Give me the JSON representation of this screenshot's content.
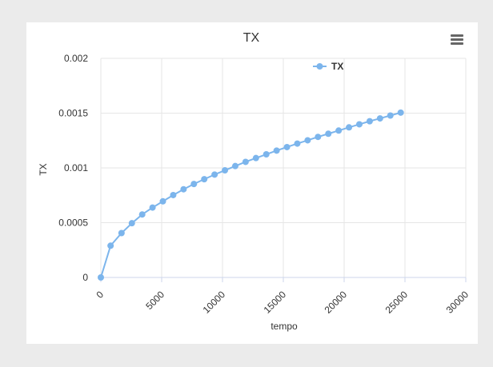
{
  "chart_data": {
    "type": "line",
    "title": "TX",
    "xlabel": "tempo",
    "ylabel": "TX",
    "xlim": [
      0,
      30000
    ],
    "ylim": [
      0,
      0.002
    ],
    "x_ticks": [
      "0",
      "5000",
      "10000",
      "15000",
      "20000",
      "25000",
      "30000"
    ],
    "y_ticks": [
      "0",
      "0.0005",
      "0.001",
      "0.0015",
      "0.002"
    ],
    "grid": true,
    "legend_position": "top",
    "color": "#7cb5ec",
    "series": [
      {
        "name": "TX",
        "x": [
          0,
          800,
          1700,
          2550,
          3400,
          4250,
          5100,
          5950,
          6800,
          7650,
          8500,
          9350,
          10200,
          11050,
          11900,
          12750,
          13600,
          14450,
          15300,
          16150,
          17000,
          17850,
          18700,
          19550,
          20400,
          21250,
          22100,
          22950,
          23800,
          24650
        ],
        "y": [
          0,
          0.00029,
          0.000405,
          0.000495,
          0.000575,
          0.000638,
          0.000695,
          0.000752,
          0.000805,
          0.000853,
          0.000897,
          0.000939,
          0.000978,
          0.001017,
          0.001055,
          0.00109,
          0.001124,
          0.001158,
          0.00119,
          0.001222,
          0.001252,
          0.001283,
          0.001312,
          0.001341,
          0.00137,
          0.001398,
          0.001426,
          0.001452,
          0.001478,
          0.001505
        ]
      }
    ]
  },
  "menu": {
    "icon": "hamburger-menu-icon"
  }
}
